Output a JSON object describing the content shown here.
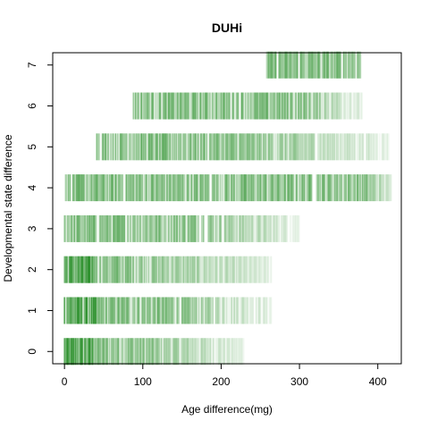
{
  "chart_data": {
    "type": "strip",
    "title": "DUHi",
    "xlabel": "Age difference(mg)",
    "ylabel": "Developmental state difference",
    "xlim": [
      -15,
      430
    ],
    "ylim": [
      -0.3,
      7.3
    ],
    "xticks": [
      0,
      100,
      200,
      300,
      400
    ],
    "yticks": [
      0,
      1,
      2,
      3,
      4,
      5,
      6,
      7
    ],
    "color": "#228B22",
    "series": [
      {
        "y": 0,
        "x_range": [
          0,
          230
        ],
        "dense_until": 80
      },
      {
        "y": 1,
        "x_range": [
          0,
          265
        ],
        "dense_until": 120
      },
      {
        "y": 2,
        "x_range": [
          0,
          265
        ],
        "dense_until": 80
      },
      {
        "y": 3,
        "x_range": [
          0,
          300
        ],
        "dense_until": 160
      },
      {
        "y": 4,
        "x_range": [
          0,
          420
        ],
        "dense_until": 380
      },
      {
        "y": 5,
        "x_range": [
          40,
          415
        ],
        "dense_until": 200
      },
      {
        "y": 6,
        "x_range": [
          88,
          380
        ],
        "dense_until": 300
      },
      {
        "y": 7,
        "x_range": [
          258,
          378
        ],
        "dense_until": 378
      }
    ]
  }
}
